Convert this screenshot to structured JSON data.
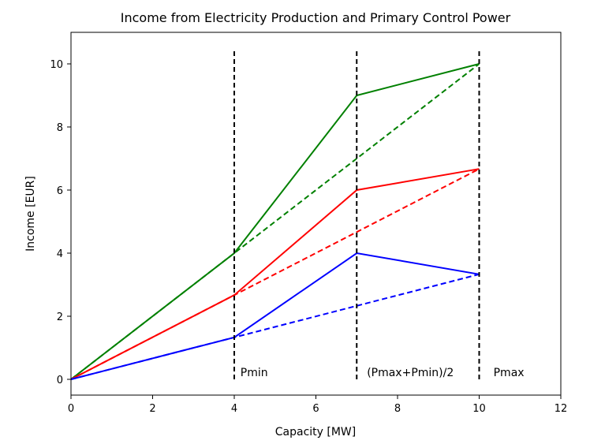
{
  "chart_data": {
    "type": "line",
    "title": "Income from Electricity Production and Primary Control Power",
    "xlabel": "Capacity [MW]",
    "ylabel": "Income [EUR]",
    "xlim": [
      0,
      12
    ],
    "ylim": [
      -0.5,
      11
    ],
    "xticks": [
      "0",
      "2",
      "4",
      "6",
      "8",
      "10",
      "12"
    ],
    "yticks": [
      "0",
      "2",
      "4",
      "6",
      "8",
      "10"
    ],
    "grid": false,
    "series": [
      {
        "color": "#008000",
        "style": "solid",
        "x": [
          0,
          4,
          7,
          10
        ],
        "y": [
          0,
          4,
          9,
          10
        ]
      },
      {
        "color": "#008000",
        "style": "dashed",
        "x": [
          0,
          4,
          7,
          10
        ],
        "y": [
          0,
          4,
          7,
          10
        ]
      },
      {
        "color": "#ff0000",
        "style": "solid",
        "x": [
          0,
          4,
          7,
          10
        ],
        "y": [
          0,
          2.67,
          6,
          6.67
        ]
      },
      {
        "color": "#ff0000",
        "style": "dashed",
        "x": [
          0,
          4,
          7,
          10
        ],
        "y": [
          0,
          2.67,
          4.67,
          6.67
        ]
      },
      {
        "color": "#0000ff",
        "style": "solid",
        "x": [
          0,
          4,
          7,
          10
        ],
        "y": [
          0,
          1.33,
          4,
          3.33
        ]
      },
      {
        "color": "#0000ff",
        "style": "dashed",
        "x": [
          0,
          4,
          7,
          10
        ],
        "y": [
          0,
          1.33,
          2.33,
          3.33
        ]
      }
    ],
    "vlines": [
      {
        "x": 4,
        "ymin": 0,
        "ymax": 10.5,
        "color": "#000000",
        "style": "dashed"
      },
      {
        "x": 7,
        "ymin": 0,
        "ymax": 10.5,
        "color": "#000000",
        "style": "dashed"
      },
      {
        "x": 10,
        "ymin": 0,
        "ymax": 10.5,
        "color": "#000000",
        "style": "dashed"
      }
    ],
    "annotations": [
      {
        "text": "Pmin",
        "x": 4.15,
        "y": 0.1
      },
      {
        "text": "(Pmax+Pmin)/2",
        "x": 7.25,
        "y": 0.1
      },
      {
        "text": "Pmax",
        "x": 10.35,
        "y": 0.1
      }
    ]
  }
}
